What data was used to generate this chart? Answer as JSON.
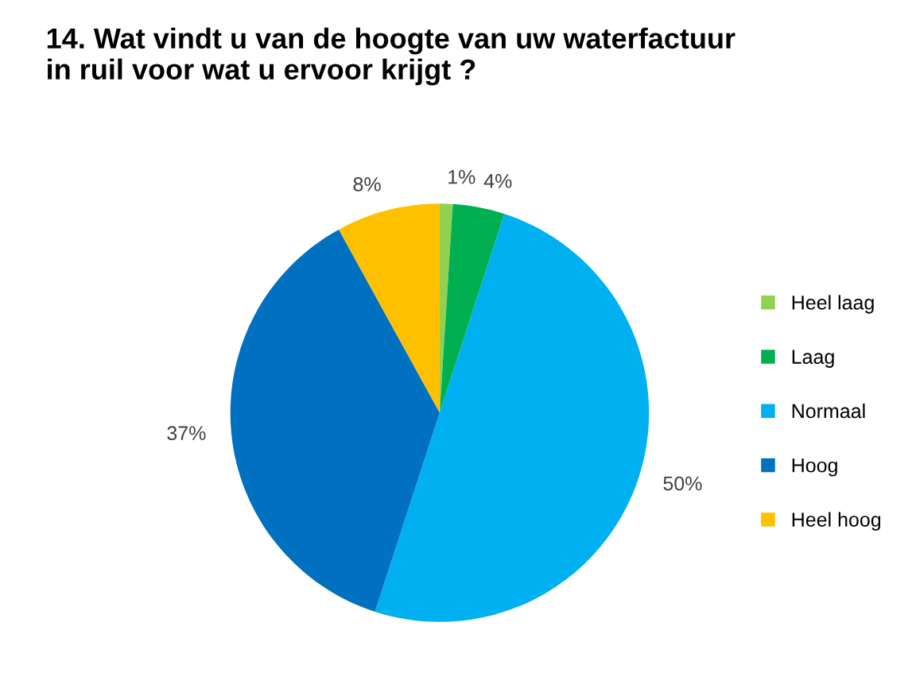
{
  "chart_data": {
    "type": "pie",
    "title": "14. Wat vindt u van de hoogte van uw waterfactuur\nin ruil voor wat u ervoor krijgt ?",
    "categories": [
      "Heel laag",
      "Laag",
      "Normaal",
      "Hoog",
      "Heel hoog"
    ],
    "values": [
      1,
      4,
      50,
      37,
      8
    ],
    "value_labels": [
      "1%",
      "4%",
      "50%",
      "37%",
      "8%"
    ],
    "colors": [
      "#92d050",
      "#00b050",
      "#00b0f0",
      "#0070c0",
      "#ffc000"
    ],
    "legend": "right"
  }
}
